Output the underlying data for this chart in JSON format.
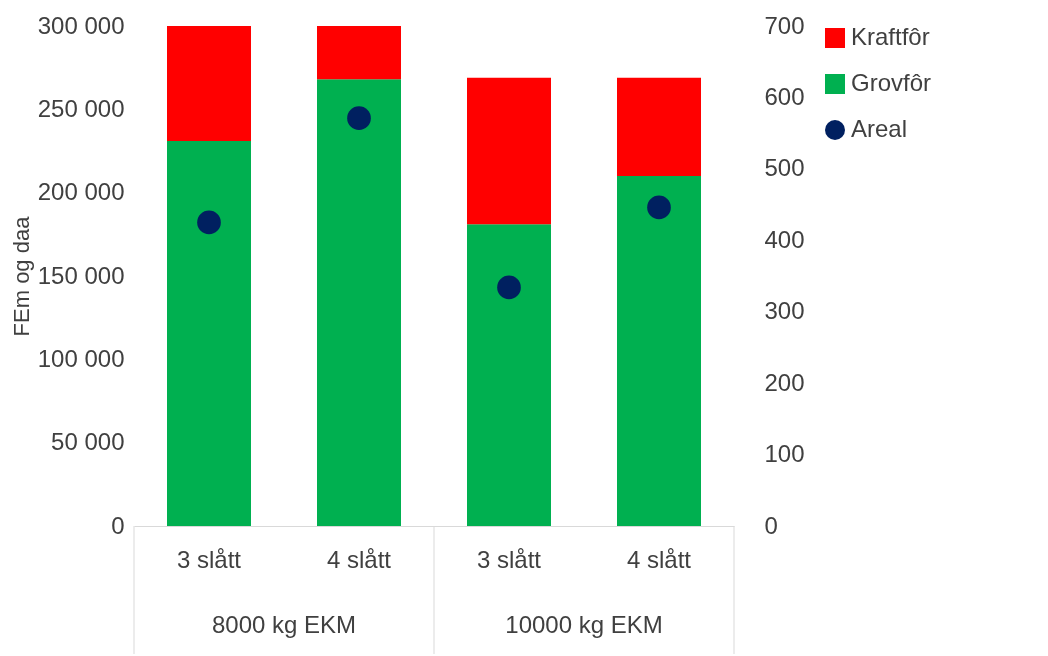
{
  "chart_data": {
    "type": "bar",
    "ylabel": "FEm og daa",
    "categories": [
      "3 slått",
      "4 slått",
      "3 slått",
      "4 slått"
    ],
    "stacked": true,
    "series": [
      {
        "name": "Grovfôr",
        "color": "#00b050",
        "values": [
          231000,
          268000,
          181000,
          210000
        ]
      },
      {
        "name": "Kraftfôr",
        "color": "#ff0000",
        "values": [
          69000,
          32000,
          88000,
          59000
        ]
      },
      {
        "name": "Areal",
        "type": "scatter",
        "axis": "y2",
        "color": "#002060",
        "marker": "circle",
        "values": [
          425,
          571,
          334,
          446
        ]
      }
    ],
    "ylim": [
      0,
      300000
    ],
    "yticks": [
      {
        "value": 0,
        "label": "0"
      },
      {
        "value": 50000,
        "label": "50 000"
      },
      {
        "value": 100000,
        "label": "100 000"
      },
      {
        "value": 150000,
        "label": "150 000"
      },
      {
        "value": 200000,
        "label": "200 000"
      },
      {
        "value": 250000,
        "label": "250 000"
      },
      {
        "value": 300000,
        "label": "300 000"
      }
    ],
    "y2lim": [
      0,
      700
    ],
    "y2ticks": [
      0,
      100,
      200,
      300,
      400,
      500,
      600,
      700
    ],
    "annotations": [
      "8000 kg EKM",
      "10000 kg EKM"
    ],
    "grid": false,
    "legend": "right"
  }
}
